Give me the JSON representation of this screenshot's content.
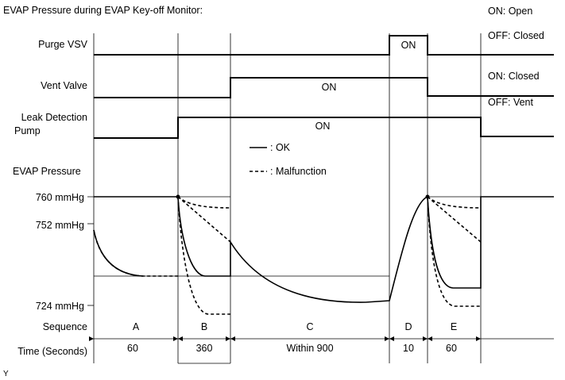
{
  "title": "EVAP Pressure during EVAP Key-off Monitor:",
  "legend_right": {
    "purge_on": "ON: Open",
    "purge_off": "OFF: Closed",
    "vent_on": "ON: Closed",
    "vent_off": "OFF: Vent"
  },
  "rows": {
    "purge_vsv": "Purge VSV",
    "vent_valve": "Vent Valve",
    "leak_pump_line1": "Leak Detection",
    "leak_pump_line2": "Pump",
    "evap_pressure": "EVAP Pressure",
    "sequence": "Sequence",
    "time": "Time (Seconds)"
  },
  "on_labels": {
    "purge": "ON",
    "vent": "ON",
    "pump": "ON"
  },
  "line_legend": {
    "ok": ": OK",
    "malfunction": ": Malfunction"
  },
  "pressure_labels": {
    "p760": "760 mmHg",
    "p752": "752 mmHg",
    "p724": "724 mmHg"
  },
  "sequence": [
    {
      "label": "A",
      "time": "60"
    },
    {
      "label": "B",
      "time": "360"
    },
    {
      "label": "C",
      "time": "Within 900"
    },
    {
      "label": "D",
      "time": "10"
    },
    {
      "label": "E",
      "time": "60"
    }
  ],
  "footnote": "Y"
}
